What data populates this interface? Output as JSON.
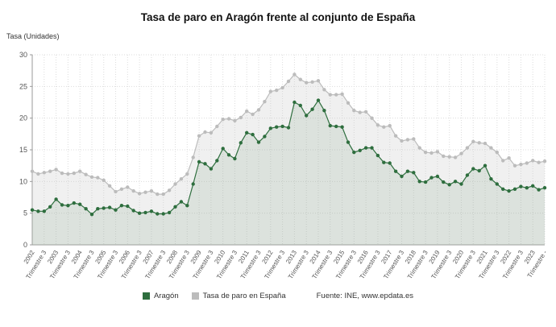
{
  "title": "Tasa de paro en Aragón frente al conjunto de España",
  "y_axis_label": "Tasa (Unidades)",
  "legend": {
    "aragon_label": "Aragón",
    "espana_label": "Tasa de paro en España",
    "source": "Fuente: INE, www.epdata.es"
  },
  "colors": {
    "aragon": "#2e6e3e",
    "espana": "#bcbcbc",
    "aragon_area": "#2e6e3e",
    "espana_area": "#c9c9c9",
    "grid": "#dcdcdc",
    "axis": "#9a9a9a",
    "tick_text": "#555555"
  },
  "chart_data": {
    "type": "line",
    "title": "Tasa de paro en Aragón frente al conjunto de España",
    "ylabel": "Tasa (Unidades)",
    "ylim": [
      0,
      30
    ],
    "y_ticks": [
      0,
      5,
      10,
      15,
      20,
      25,
      30
    ],
    "grid": true,
    "legend_position": "bottom",
    "x_years": [
      "2002",
      "2003",
      "2004",
      "2005",
      "2006",
      "2007",
      "2008",
      "2009",
      "2010",
      "2011",
      "2012",
      "2013",
      "2014",
      "2015",
      "2016",
      "2017",
      "2018",
      "2019",
      "2020",
      "2021",
      "2022",
      "2023"
    ],
    "x_label_quarter": "Trimestre 3",
    "x_label_last": "Trimestre -",
    "series": [
      {
        "name": "Aragón",
        "color": "#2e6e3e",
        "values": [
          5.5,
          5.3,
          5.3,
          6.0,
          7.2,
          6.3,
          6.2,
          6.6,
          6.4,
          5.7,
          4.8,
          5.7,
          5.8,
          5.9,
          5.5,
          6.2,
          6.1,
          5.4,
          5.0,
          5.1,
          5.3,
          4.9,
          4.9,
          5.1,
          6.0,
          6.8,
          6.2,
          9.6,
          13.1,
          12.8,
          12.0,
          13.3,
          15.2,
          14.2,
          13.6,
          16.1,
          17.7,
          17.4,
          16.2,
          17.1,
          18.4,
          18.6,
          18.7,
          18.5,
          22.5,
          22.0,
          20.4,
          21.4,
          22.8,
          21.2,
          18.8,
          18.7,
          18.6,
          16.2,
          14.6,
          14.9,
          15.3,
          15.3,
          14.1,
          13.0,
          12.9,
          11.6,
          10.8,
          11.6,
          11.4,
          10.0,
          9.9,
          10.6,
          10.8,
          9.9,
          9.5,
          10.0,
          9.6,
          11.0,
          12.0,
          11.7,
          12.5,
          10.4,
          9.6,
          8.8,
          8.5,
          8.8,
          9.2,
          9.0,
          9.3,
          8.7,
          9.0
        ]
      },
      {
        "name": "Tasa de paro en España",
        "color": "#bcbcbc",
        "values": [
          11.6,
          11.2,
          11.4,
          11.6,
          11.9,
          11.3,
          11.2,
          11.3,
          11.6,
          11.1,
          10.7,
          10.6,
          10.2,
          9.3,
          8.4,
          8.8,
          9.1,
          8.5,
          8.1,
          8.3,
          8.5,
          8.0,
          8.0,
          8.6,
          9.6,
          10.4,
          11.2,
          13.8,
          17.2,
          17.8,
          17.7,
          18.7,
          19.8,
          19.9,
          19.6,
          20.1,
          21.1,
          20.6,
          21.3,
          22.6,
          24.2,
          24.4,
          24.8,
          25.8,
          26.9,
          26.1,
          25.6,
          25.7,
          25.9,
          24.5,
          23.7,
          23.7,
          23.8,
          22.4,
          21.2,
          20.9,
          21.0,
          20.0,
          18.9,
          18.6,
          18.8,
          17.2,
          16.4,
          16.6,
          16.7,
          15.3,
          14.6,
          14.5,
          14.7,
          14.0,
          13.9,
          13.8,
          14.4,
          15.3,
          16.3,
          16.1,
          16.0,
          15.3,
          14.6,
          13.3,
          13.7,
          12.5,
          12.7,
          12.9,
          13.3,
          13.0,
          13.2
        ]
      }
    ]
  }
}
